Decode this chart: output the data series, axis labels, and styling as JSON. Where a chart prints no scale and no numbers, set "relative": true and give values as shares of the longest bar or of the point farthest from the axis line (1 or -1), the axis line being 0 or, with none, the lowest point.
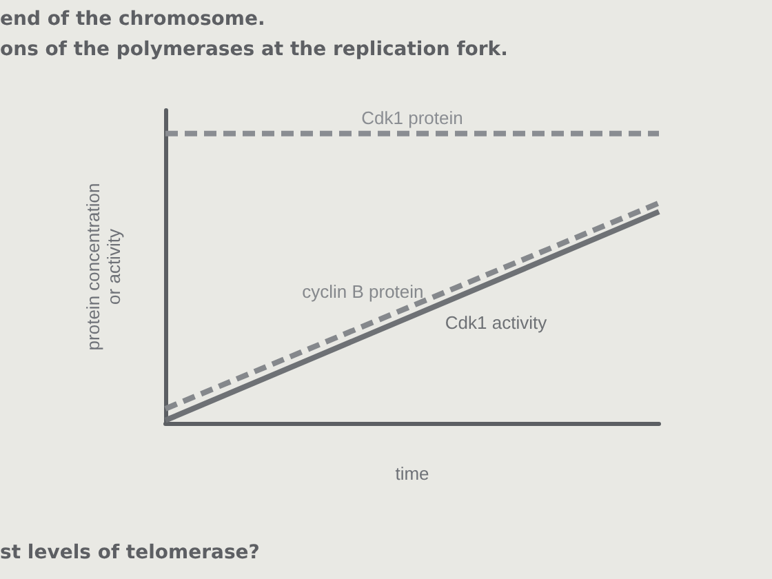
{
  "chart_data": {
    "type": "line",
    "relative": true,
    "xlabel": "time",
    "ylabel": "protein concentration or activity",
    "categories": [
      null,
      null
    ],
    "marker": "none",
    "grid": false,
    "legend": false,
    "series": [
      {
        "name": "Cdk1 protein",
        "color": "#8a8d92",
        "values": [
          1,
          1
        ],
        "line_style": "dashed"
      },
      {
        "name": "cyclin B protein",
        "color": "#85888c",
        "values": [
          0.05,
          0.76
        ],
        "line_style": "dashed"
      },
      {
        "name": "Cdk1 activity",
        "color": "#6e7175",
        "values": [
          0.01,
          0.73
        ],
        "line_style": "solid"
      }
    ],
    "annotations": [
      "end of the chromosome.",
      "ons of the polymerases at the replication fork.",
      "st levels of telomerase?"
    ]
  }
}
